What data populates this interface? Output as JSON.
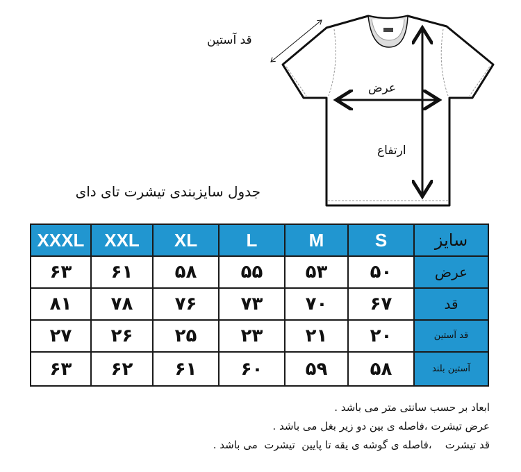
{
  "diagram": {
    "sleeve_label": "قد آستین",
    "width_label": "عرض",
    "height_label": "ارتفاع"
  },
  "title": "جدول سایزبندی تیشرت تای دای",
  "table": {
    "header_label": "سایز",
    "sizes": [
      "XXXL",
      "XXL",
      "XL",
      "L",
      "M",
      "S"
    ],
    "rows": [
      {
        "label": "عرض",
        "values": [
          "۶۳",
          "۶۱",
          "۵۸",
          "۵۵",
          "۵۳",
          "۵۰"
        ]
      },
      {
        "label": "قد",
        "values": [
          "۸۱",
          "۷۸",
          "۷۶",
          "۷۳",
          "۷۰",
          "۶۷"
        ]
      },
      {
        "label": "قد آستین",
        "values": [
          "۲۷",
          "۲۶",
          "۲۵",
          "۲۳",
          "۲۱",
          "۲۰"
        ]
      },
      {
        "label": "آستین بلند",
        "values": [
          "۶۳",
          "۶۲",
          "۶۱",
          "۶۰",
          "۵۹",
          "۵۸"
        ]
      }
    ]
  },
  "notes": [
    "ابعاد بر حسب سانتی متر می باشد .",
    "عرض تیشرت ،فاصله ی بین دو زیر بغل می باشد .",
    "قد تیشرت    ،فاصله ی گوشه ی یقه تا پایین  تیشرت  می باشد ."
  ],
  "colors": {
    "header_bg": "#2196d0",
    "border": "#1a1a1a"
  }
}
